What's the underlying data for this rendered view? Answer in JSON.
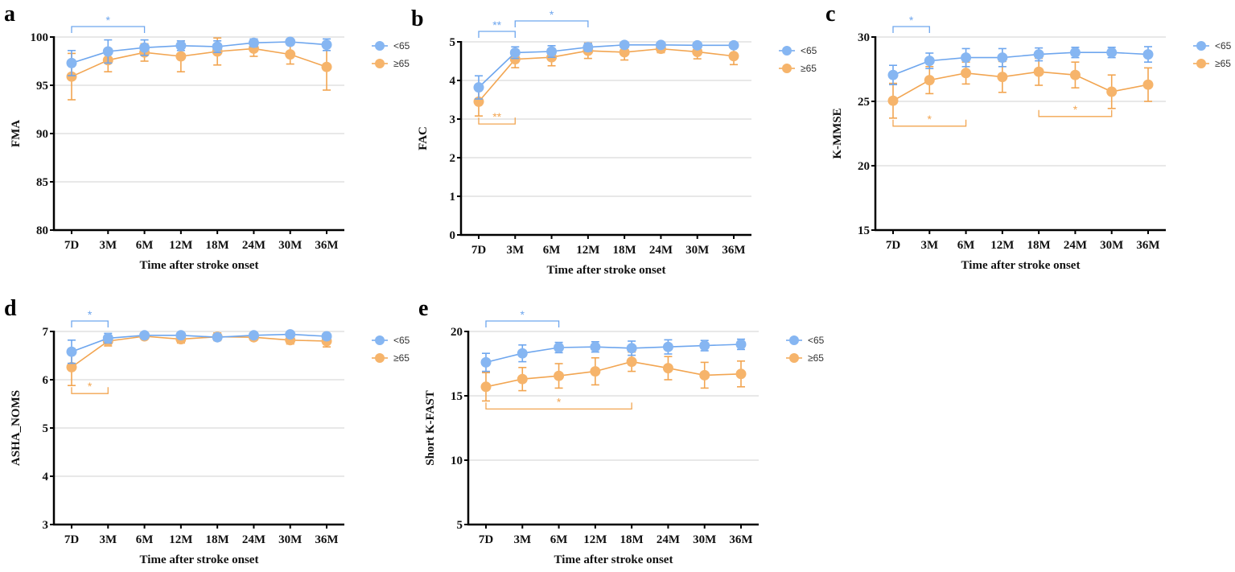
{
  "colors": {
    "under65": "#86b6f2",
    "under65_line": "#6ea6ee",
    "over65": "#f6b46b",
    "over65_line": "#f2a551",
    "grid": "#d9d9d9",
    "axis": "#000000"
  },
  "legend": {
    "under65": "<65",
    "over65": "≥65"
  },
  "chart_data": [
    {
      "type": "line",
      "panel": "a",
      "ylabel": "FMA",
      "xlabel": "Time after stroke onset",
      "categories": [
        "7D",
        "3M",
        "6M",
        "12M",
        "18M",
        "24M",
        "30M",
        "36M"
      ],
      "ylim": [
        80,
        100
      ],
      "yticks": [
        "80",
        "85",
        "90",
        "95",
        "100"
      ],
      "grid": true,
      "legend_placement": "right",
      "series": [
        {
          "name": "<65",
          "values": [
            97.3,
            98.5,
            98.9,
            99.1,
            99.0,
            99.4,
            99.5,
            99.2
          ],
          "error": [
            1.3,
            1.2,
            0.8,
            0.5,
            0.6,
            0.4,
            0.3,
            0.6
          ]
        },
        {
          "name": "≥65",
          "values": [
            95.9,
            97.6,
            98.4,
            98.0,
            98.5,
            98.8,
            98.2,
            96.9
          ],
          "error": [
            2.4,
            1.2,
            0.9,
            1.6,
            1.4,
            0.8,
            1.0,
            2.4
          ]
        }
      ],
      "significance": [
        {
          "series": "<65",
          "from": 0,
          "to": 2,
          "label": "*",
          "side": "above",
          "tier": 1
        }
      ]
    },
    {
      "type": "line",
      "panel": "b",
      "ylabel": "FAC",
      "xlabel": "Time after stroke onset",
      "categories": [
        "7D",
        "3M",
        "6M",
        "12M",
        "18M",
        "24M",
        "30M",
        "36M"
      ],
      "ylim": [
        0,
        5
      ],
      "yticks": [
        "0",
        "1",
        "2",
        "3",
        "4",
        "5"
      ],
      "grid": true,
      "legend_placement": "right",
      "series": [
        {
          "name": "<65",
          "values": [
            3.82,
            4.72,
            4.75,
            4.86,
            4.92,
            4.92,
            4.91,
            4.91
          ],
          "error": [
            0.3,
            0.15,
            0.15,
            0.1,
            0.03,
            0.03,
            0.03,
            0.05
          ]
        },
        {
          "name": "≥65",
          "values": [
            3.45,
            4.55,
            4.6,
            4.77,
            4.73,
            4.82,
            4.74,
            4.63
          ],
          "error": [
            0.37,
            0.22,
            0.22,
            0.2,
            0.2,
            0.1,
            0.18,
            0.22
          ]
        }
      ],
      "significance": [
        {
          "series": "<65",
          "from": 0,
          "to": 1,
          "label": "**",
          "side": "above",
          "tier": 1
        },
        {
          "series": "<65",
          "from": 1,
          "to": 3,
          "label": "*",
          "side": "above",
          "tier": 2
        },
        {
          "series": "≥65",
          "from": 0,
          "to": 1,
          "label": "**",
          "side": "below",
          "tier": 1
        }
      ]
    },
    {
      "type": "line",
      "panel": "c",
      "ylabel": "K-MMSE",
      "xlabel": "Time after stroke onset",
      "categories": [
        "7D",
        "3M",
        "6M",
        "12M",
        "18M",
        "24M",
        "30M",
        "36M"
      ],
      "ylim": [
        15,
        30
      ],
      "yticks": [
        "15",
        "20",
        "25",
        "30"
      ],
      "grid": true,
      "legend_placement": "right",
      "series": [
        {
          "name": "<65",
          "values": [
            27.05,
            28.15,
            28.4,
            28.4,
            28.65,
            28.8,
            28.8,
            28.65
          ],
          "error": [
            0.75,
            0.6,
            0.7,
            0.7,
            0.5,
            0.4,
            0.4,
            0.6
          ]
        },
        {
          "name": "≥65",
          "values": [
            25.05,
            26.65,
            27.2,
            26.9,
            27.3,
            27.05,
            25.75,
            26.3
          ],
          "error": [
            1.35,
            1.05,
            0.85,
            1.2,
            1.05,
            1.0,
            1.3,
            1.3
          ]
        }
      ],
      "significance": [
        {
          "series": "<65",
          "from": 0,
          "to": 1,
          "label": "*",
          "side": "above",
          "tier": 1
        },
        {
          "series": "≥65",
          "from": 0,
          "to": 2,
          "label": "*",
          "side": "below",
          "tier": 1
        },
        {
          "series": "≥65",
          "from": 4,
          "to": 6,
          "label": "*",
          "side": "below",
          "tier": 1
        }
      ]
    },
    {
      "type": "line",
      "panel": "d",
      "ylabel": "ASHA_NOMS",
      "xlabel": "Time after stroke onset",
      "categories": [
        "7D",
        "3M",
        "6M",
        "12M",
        "18M",
        "24M",
        "30M",
        "36M"
      ],
      "ylim": [
        3,
        7
      ],
      "yticks": [
        "3",
        "4",
        "5",
        "6",
        "7"
      ],
      "grid": true,
      "legend_placement": "right",
      "series": [
        {
          "name": "<65",
          "values": [
            6.58,
            6.86,
            6.92,
            6.92,
            6.88,
            6.92,
            6.94,
            6.9
          ],
          "error": [
            0.24,
            0.1,
            0.03,
            0.03,
            0.05,
            0.03,
            0.03,
            0.04
          ]
        },
        {
          "name": "≥65",
          "values": [
            6.26,
            6.8,
            6.9,
            6.84,
            6.89,
            6.88,
            6.82,
            6.8
          ],
          "error": [
            0.38,
            0.1,
            0.05,
            0.08,
            0.08,
            0.06,
            0.08,
            0.12
          ]
        }
      ],
      "significance": [
        {
          "series": "<65",
          "from": 0,
          "to": 1,
          "label": "*",
          "side": "above",
          "tier": 1
        },
        {
          "series": "≥65",
          "from": 0,
          "to": 1,
          "label": "*",
          "side": "below",
          "tier": 1
        }
      ]
    },
    {
      "type": "line",
      "panel": "e",
      "ylabel": "Short  K-FAST",
      "xlabel": "Time after stroke onset",
      "categories": [
        "7D",
        "3M",
        "6M",
        "12M",
        "18M",
        "24M",
        "30M",
        "36M"
      ],
      "ylim": [
        5,
        20
      ],
      "yticks": [
        "5",
        "10",
        "15",
        "20"
      ],
      "grid": true,
      "legend_placement": "right",
      "series": [
        {
          "name": "<65",
          "values": [
            17.6,
            18.3,
            18.75,
            18.8,
            18.7,
            18.8,
            18.9,
            19.0
          ],
          "error": [
            0.7,
            0.65,
            0.4,
            0.4,
            0.55,
            0.55,
            0.4,
            0.4
          ]
        },
        {
          "name": "≥65",
          "values": [
            15.7,
            16.3,
            16.55,
            16.9,
            17.65,
            17.15,
            16.6,
            16.7
          ],
          "error": [
            1.1,
            0.9,
            0.95,
            1.05,
            0.75,
            0.9,
            1.0,
            1.0
          ]
        }
      ],
      "significance": [
        {
          "series": "<65",
          "from": 0,
          "to": 2,
          "label": "*",
          "side": "above",
          "tier": 1
        },
        {
          "series": "≥65",
          "from": 0,
          "to": 4,
          "label": "*",
          "side": "below",
          "tier": 1
        }
      ]
    }
  ]
}
